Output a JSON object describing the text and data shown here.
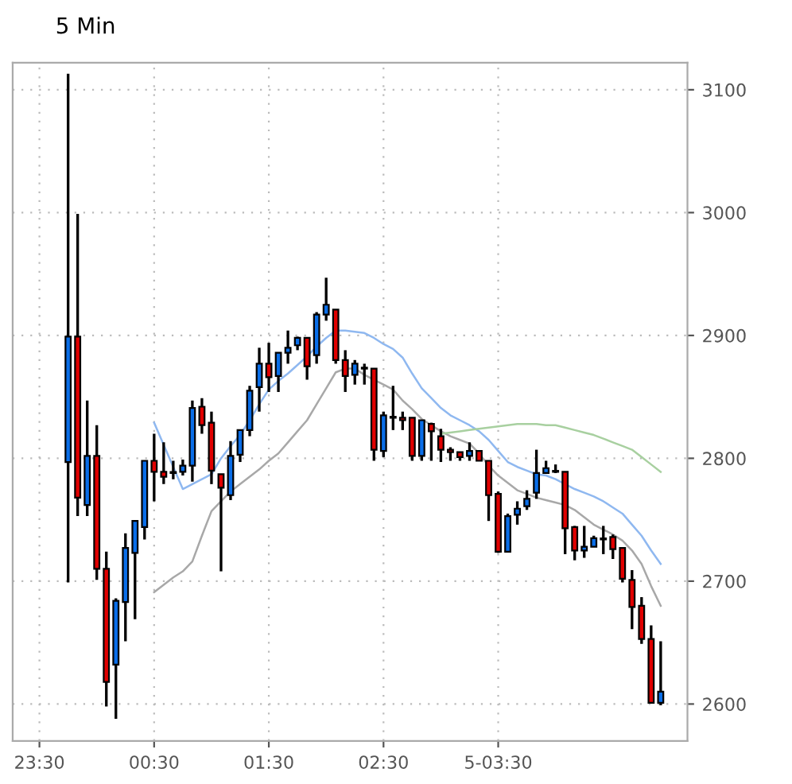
{
  "chart_data": {
    "type": "candlestick",
    "title": "5 Min",
    "categories": [
      "23:30",
      null,
      null,
      null,
      null,
      null,
      null,
      null,
      null,
      null,
      null,
      null,
      "00:30",
      null,
      null,
      null,
      null,
      null,
      null,
      null,
      null,
      null,
      null,
      null,
      "01:30",
      null,
      null,
      null,
      null,
      null,
      null,
      null,
      null,
      null,
      null,
      null,
      "02:30",
      null,
      null,
      null,
      null,
      null,
      null,
      null,
      null,
      null,
      null,
      null,
      "5-03:30",
      null,
      null,
      null,
      null,
      null,
      null,
      null,
      null,
      null,
      null,
      null,
      null,
      null,
      null,
      null,
      null,
      null
    ],
    "ohlc": [
      null,
      null,
      null,
      [
        2797,
        3113,
        2699,
        2899
      ],
      [
        2899,
        2999,
        2753,
        2768
      ],
      [
        2762,
        2847,
        2753,
        2802
      ],
      [
        2802,
        2827,
        2701,
        2710
      ],
      [
        2710,
        2724,
        2598,
        2618
      ],
      [
        2632,
        2686,
        2588,
        2684
      ],
      [
        2683,
        2739,
        2651,
        2727
      ],
      [
        2723,
        2749,
        2669,
        2749
      ],
      [
        2744,
        2798,
        2734,
        2798
      ],
      [
        2798,
        2820,
        2765,
        2789
      ],
      [
        2789,
        2813,
        2779,
        2785
      ],
      [
        2788,
        2798,
        2783,
        2788
      ],
      [
        2789,
        2799,
        2786,
        2794
      ],
      [
        2794,
        2847,
        2781,
        2841
      ],
      [
        2842,
        2849,
        2820,
        2827
      ],
      [
        2829,
        2838,
        2779,
        2790
      ],
      [
        2787,
        2787,
        2708,
        2776
      ],
      [
        2770,
        2814,
        2766,
        2802
      ],
      [
        2803,
        2823,
        2797,
        2823
      ],
      [
        2823,
        2859,
        2818,
        2855
      ],
      [
        2858,
        2890,
        2838,
        2877
      ],
      [
        2877,
        2894,
        2854,
        2866
      ],
      [
        2867,
        2886,
        2854,
        2886
      ],
      [
        2886,
        2904,
        2877,
        2890
      ],
      [
        2892,
        2899,
        2888,
        2898
      ],
      [
        2898,
        2898,
        2864,
        2875
      ],
      [
        2884,
        2919,
        2877,
        2917
      ],
      [
        2917,
        2947,
        2912,
        2925
      ],
      [
        2921,
        2921,
        2877,
        2880
      ],
      [
        2880,
        2888,
        2854,
        2867
      ],
      [
        2868,
        2880,
        2860,
        2877
      ],
      [
        2873,
        2877,
        2860,
        2873
      ],
      [
        2873,
        2873,
        2798,
        2807
      ],
      [
        2806,
        2838,
        2801,
        2835
      ],
      [
        2833,
        2859,
        2823,
        2833
      ],
      [
        2833,
        2838,
        2823,
        2831
      ],
      [
        2833,
        2833,
        2798,
        2802
      ],
      [
        2802,
        2831,
        2798,
        2831
      ],
      [
        2828,
        2829,
        2798,
        2822
      ],
      [
        2818,
        2824,
        2797,
        2807
      ],
      [
        2807,
        2809,
        2798,
        2805
      ],
      [
        2805,
        2805,
        2798,
        2801
      ],
      [
        2802,
        2813,
        2798,
        2806
      ],
      [
        2806,
        2806,
        2798,
        2798
      ],
      [
        2798,
        2798,
        2749,
        2770
      ],
      [
        2771,
        2773,
        2723,
        2724
      ],
      [
        2724,
        2755,
        2724,
        2753
      ],
      [
        2754,
        2765,
        2746,
        2759
      ],
      [
        2761,
        2774,
        2758,
        2767
      ],
      [
        2772,
        2807,
        2767,
        2788
      ],
      [
        2788,
        2798,
        2788,
        2792
      ],
      [
        2789,
        2795,
        2788,
        2789
      ],
      [
        2789,
        2789,
        2722,
        2743
      ],
      [
        2744,
        2745,
        2717,
        2725
      ],
      [
        2725,
        2745,
        2719,
        2728
      ],
      [
        2728,
        2737,
        2728,
        2735
      ],
      [
        2734,
        2745,
        2722,
        2734
      ],
      [
        2736,
        2738,
        2718,
        2726
      ],
      [
        2727,
        2727,
        2699,
        2702
      ],
      [
        2701,
        2709,
        2661,
        2679
      ],
      [
        2680,
        2687,
        2649,
        2653
      ],
      [
        2653,
        2664,
        2601,
        2601
      ],
      [
        2601,
        2651,
        2599,
        2610
      ]
    ],
    "colors": [
      null,
      null,
      null,
      "#0a6ee8",
      "#e00000",
      "#0a6ee8",
      "#e00000",
      "#e00000",
      "#0a6ee8",
      "#0a6ee8",
      "#0a6ee8",
      "#0a6ee8",
      "#e00000",
      "#e00000",
      "#0a6ee8",
      "#0a6ee8",
      "#0a6ee8",
      "#e00000",
      "#e00000",
      "#e00000",
      "#0a6ee8",
      "#0a6ee8",
      "#0a6ee8",
      "#0a6ee8",
      "#e00000",
      "#0a6ee8",
      "#0a6ee8",
      "#0a6ee8",
      "#e00000",
      "#0a6ee8",
      "#0a6ee8",
      "#e00000",
      "#e00000",
      "#0a6ee8",
      "#0a6ee8",
      "#e00000",
      "#0a6ee8",
      "#e00000",
      "#e00000",
      "#e00000",
      "#0a6ee8",
      "#e00000",
      "#e00000",
      "#e00000",
      "#e00000",
      "#0a6ee8",
      "#e00000",
      "#e00000",
      "#e00000",
      "#0a6ee8",
      "#0a6ee8",
      "#0a6ee8",
      "#0a6ee8",
      "#0a6ee8",
      "#0a6ee8",
      "#e00000",
      "#e00000",
      "#0a6ee8",
      "#0a6ee8",
      "#e00000",
      "#e00000",
      "#e00000",
      "#e00000",
      "#e00000",
      "#e00000",
      "#0a6ee8"
    ],
    "series": [
      {
        "type": "line",
        "color": "#8fb8f0",
        "values": [
          null,
          null,
          null,
          null,
          null,
          null,
          null,
          null,
          null,
          null,
          null,
          null,
          2829,
          2811,
          2793,
          2775,
          2779,
          2783,
          2787,
          2800,
          2810,
          2819,
          2831,
          2844,
          2856,
          2863,
          2869,
          2876,
          2883,
          2891,
          2898,
          2904,
          2904,
          2903,
          2902,
          2898,
          2893,
          2889,
          2882,
          2869,
          2857,
          2849,
          2841,
          2835,
          2831,
          2827,
          2822,
          2815,
          2806,
          2797,
          2793,
          2790,
          2787,
          2786,
          2783,
          2779,
          2775,
          2772,
          2769,
          2765,
          2760,
          2755,
          2746,
          2737,
          2725,
          2714
        ]
      },
      {
        "type": "line",
        "color": "#a8a8a8",
        "values": [
          null,
          null,
          null,
          null,
          null,
          null,
          null,
          null,
          null,
          null,
          null,
          null,
          2691,
          2697,
          2703,
          2708,
          2716,
          2737,
          2757,
          2765,
          2773,
          2779,
          2785,
          2791,
          2798,
          2804,
          2813,
          2822,
          2831,
          2844,
          2857,
          2870,
          2873,
          2873,
          2868,
          2864,
          2860,
          2856,
          2847,
          2840,
          2832,
          2827,
          2822,
          2818,
          2815,
          2812,
          2804,
          2794,
          2786,
          2780,
          2774,
          2771,
          2768,
          2766,
          2764,
          2762,
          2758,
          2752,
          2746,
          2742,
          2738,
          2733,
          2725,
          2714,
          2696,
          2680
        ]
      },
      {
        "type": "line",
        "color": "#a8d0a0",
        "values": [
          null,
          null,
          null,
          null,
          null,
          null,
          null,
          null,
          null,
          null,
          null,
          null,
          null,
          null,
          null,
          null,
          null,
          null,
          null,
          null,
          null,
          null,
          null,
          null,
          null,
          null,
          null,
          null,
          null,
          null,
          null,
          null,
          null,
          null,
          null,
          null,
          null,
          null,
          null,
          null,
          null,
          null,
          2820,
          2821,
          2822,
          2823,
          2824,
          2825,
          2826,
          2827,
          2828,
          2828,
          2828,
          2827,
          2827,
          2825,
          2823,
          2821,
          2819,
          2816,
          2813,
          2810,
          2807,
          2801,
          2795,
          2789
        ]
      }
    ],
    "ylim": [
      2570,
      3122
    ],
    "yticks": [
      2600,
      2700,
      2800,
      2900,
      3000,
      3100
    ],
    "grid": true,
    "legend": false
  }
}
